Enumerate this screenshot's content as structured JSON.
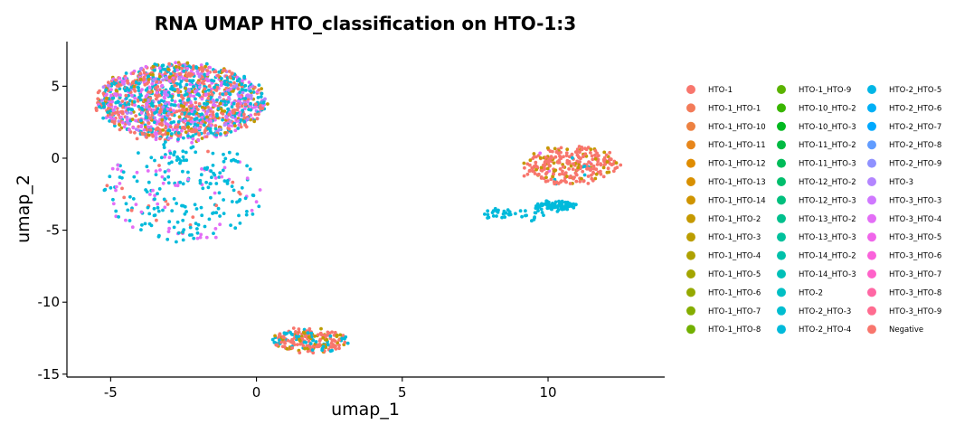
{
  "chart_data": {
    "type": "scatter",
    "title": "RNA UMAP HTO_classification on HTO-1:3",
    "xlabel": "umap_1",
    "ylabel": "umap_2",
    "xlim": [
      -6.5,
      14
    ],
    "ylim": [
      -15.2,
      8.1
    ],
    "xticks": [
      -5,
      0,
      5,
      10
    ],
    "yticks": [
      -15,
      -10,
      -5,
      0,
      5
    ],
    "grid": false,
    "legend_position": "right",
    "legend_columns": 3,
    "series": [
      {
        "name": "HTO-1",
        "color": "#F8766D"
      },
      {
        "name": "HTO-1_HTO-1",
        "color": "#F37B59"
      },
      {
        "name": "HTO-1_HTO-10",
        "color": "#ED8141"
      },
      {
        "name": "HTO-1_HTO-11",
        "color": "#E7861B"
      },
      {
        "name": "HTO-1_HTO-12",
        "color": "#DF8C00"
      },
      {
        "name": "HTO-1_HTO-13",
        "color": "#D89000"
      },
      {
        "name": "HTO-1_HTO-14",
        "color": "#CF9400"
      },
      {
        "name": "HTO-1_HTO-2",
        "color": "#C59900"
      },
      {
        "name": "HTO-1_HTO-3",
        "color": "#BB9D00"
      },
      {
        "name": "HTO-1_HTO-4",
        "color": "#AFA100"
      },
      {
        "name": "HTO-1_HTO-5",
        "color": "#A3A500"
      },
      {
        "name": "HTO-1_HTO-6",
        "color": "#95A900"
      },
      {
        "name": "HTO-1_HTO-7",
        "color": "#85AD00"
      },
      {
        "name": "HTO-1_HTO-8",
        "color": "#72B000"
      },
      {
        "name": "HTO-1_HTO-9",
        "color": "#5BB300"
      },
      {
        "name": "HTO-10_HTO-2",
        "color": "#39B600"
      },
      {
        "name": "HTO-10_HTO-3",
        "color": "#00B81F"
      },
      {
        "name": "HTO-11_HTO-2",
        "color": "#00BA42"
      },
      {
        "name": "HTO-11_HTO-3",
        "color": "#00BC59"
      },
      {
        "name": "HTO-12_HTO-2",
        "color": "#00BE6C"
      },
      {
        "name": "HTO-12_HTO-3",
        "color": "#00BF7D"
      },
      {
        "name": "HTO-13_HTO-2",
        "color": "#00C08D"
      },
      {
        "name": "HTO-13_HTO-3",
        "color": "#00C19C"
      },
      {
        "name": "HTO-14_HTO-2",
        "color": "#00C1AA"
      },
      {
        "name": "HTO-14_HTO-3",
        "color": "#00C0B8"
      },
      {
        "name": "HTO-2",
        "color": "#00BFC4"
      },
      {
        "name": "HTO-2_HTO-3",
        "color": "#00BDD0"
      },
      {
        "name": "HTO-2_HTO-4",
        "color": "#00BADB"
      },
      {
        "name": "HTO-2_HTO-5",
        "color": "#00B6E6"
      },
      {
        "name": "HTO-2_HTO-6",
        "color": "#00B0F6"
      },
      {
        "name": "HTO-2_HTO-7",
        "color": "#00A9FF"
      },
      {
        "name": "HTO-2_HTO-8",
        "color": "#619CFF"
      },
      {
        "name": "HTO-2_HTO-9",
        "color": "#8F91FF"
      },
      {
        "name": "HTO-3",
        "color": "#B385FF"
      },
      {
        "name": "HTO-3_HTO-3",
        "color": "#CF78FF"
      },
      {
        "name": "HTO-3_HTO-4",
        "color": "#E36EF6"
      },
      {
        "name": "HTO-3_HTO-5",
        "color": "#F066EA"
      },
      {
        "name": "HTO-3_HTO-6",
        "color": "#FA62DB"
      },
      {
        "name": "HTO-3_HTO-7",
        "color": "#FF62C9"
      },
      {
        "name": "HTO-3_HTO-8",
        "color": "#FF67A4"
      },
      {
        "name": "HTO-3_HTO-9",
        "color": "#FF6C90"
      },
      {
        "name": "Negative",
        "color": "#F8766D"
      }
    ],
    "clusters": [
      {
        "cx": -2.6,
        "cy": 3.9,
        "rx": 2.9,
        "ry": 2.7,
        "n": 1500,
        "weights": {
          "HTO-1": 0.28,
          "HTO-3_HTO-4": 0.24,
          "HTO-3": 0.08,
          "HTO-2_HTO-4": 0.22,
          "HTO-1_HTO-2": 0.06,
          "HTO-2_HTO-3": 0.08,
          "HTO-1_HTO-3": 0.04
        }
      },
      {
        "cx": -2.5,
        "cy": -2.3,
        "rx": 2.7,
        "ry": 3.5,
        "n": 260,
        "weights": {
          "HTO-2_HTO-4": 0.72,
          "HTO-3_HTO-4": 0.22,
          "HTO-1": 0.06
        }
      },
      {
        "cx": 10.8,
        "cy": -0.5,
        "rx": 1.6,
        "ry": 1.3,
        "n": 280,
        "weights": {
          "HTO-1": 0.72,
          "HTO-1_HTO-2": 0.18,
          "HTO-3_HTO-4": 0.05,
          "HTO-2_HTO-4": 0.05
        }
      },
      {
        "cx": 10.3,
        "cy": -3.3,
        "rx": 0.7,
        "ry": 0.3,
        "n": 80,
        "weights": {
          "HTO-2_HTO-4": 1.0
        }
      },
      {
        "cx": 8.9,
        "cy": -3.9,
        "rx": 1.1,
        "ry": 0.45,
        "n": 40,
        "weights": {
          "HTO-2_HTO-4": 1.0
        }
      },
      {
        "cx": 1.8,
        "cy": -12.7,
        "rx": 1.3,
        "ry": 0.8,
        "n": 220,
        "weights": {
          "HTO-1": 0.55,
          "HTO-2_HTO-4": 0.25,
          "HTO-1_HTO-2": 0.12,
          "HTO-1_HTO-3": 0.08
        }
      }
    ]
  }
}
